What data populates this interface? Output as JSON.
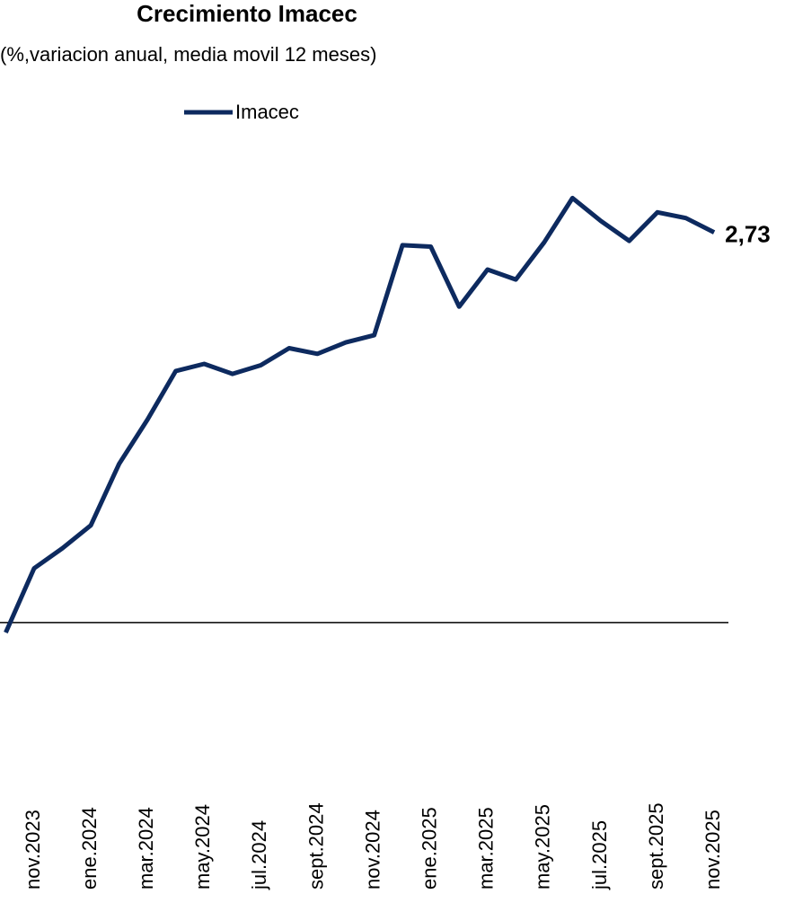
{
  "chart_data": {
    "type": "line",
    "title": "Crecimiento Imacec",
    "subtitle": "(%,variacion anual, media movil 12 meses)",
    "categories": [
      null,
      "nov.2023",
      null,
      "ene.2024",
      null,
      "mar.2024",
      null,
      "may.2024",
      null,
      "jul.2024",
      null,
      "sept.2024",
      null,
      "nov.2024",
      null,
      "ene.2025",
      null,
      "mar.2025",
      null,
      "may.2025",
      null,
      "jul.2025",
      null,
      "sept.2025",
      null,
      "nov.2025"
    ],
    "series": [
      {
        "name": "Imacec",
        "color": "#0d2a5f",
        "values": [
          -0.07,
          0.38,
          0.52,
          0.68,
          1.11,
          1.42,
          1.76,
          1.81,
          1.74,
          1.8,
          1.92,
          1.88,
          1.96,
          2.01,
          2.64,
          2.63,
          2.21,
          2.47,
          2.4,
          2.66,
          2.97,
          2.81,
          2.67,
          2.87,
          2.83,
          2.73
        ],
        "value_labels": [
          null,
          null,
          null,
          null,
          null,
          null,
          null,
          null,
          null,
          null,
          null,
          null,
          null,
          null,
          null,
          null,
          null,
          null,
          null,
          null,
          null,
          null,
          null,
          null,
          null,
          "2,73"
        ]
      }
    ],
    "ylim": [
      -1,
      3.4
    ]
  }
}
